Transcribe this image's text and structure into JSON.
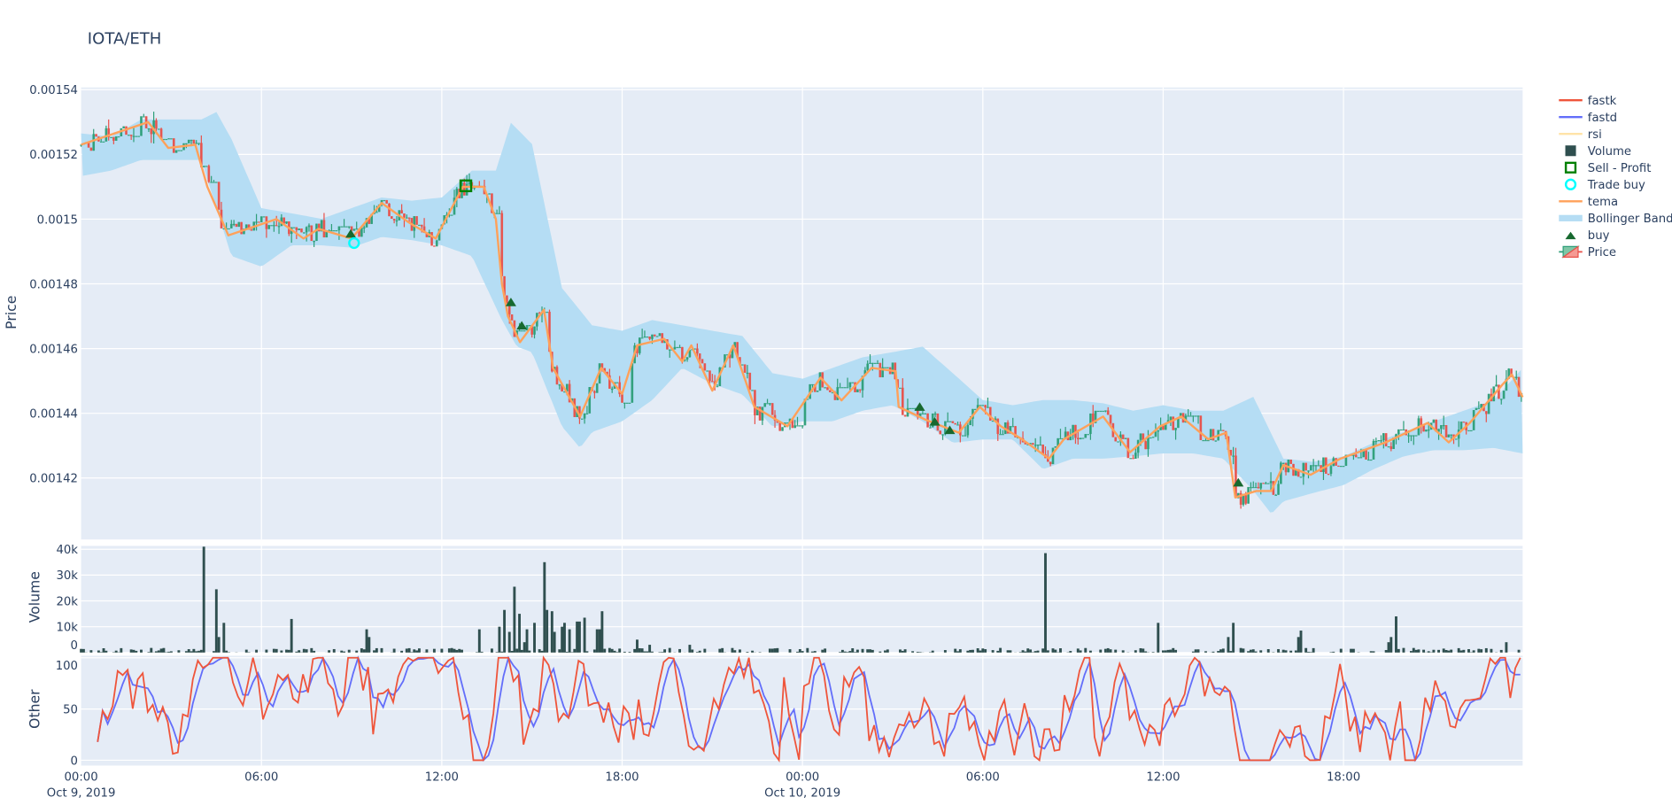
{
  "title": "IOTA/ETH",
  "colors": {
    "plot_bg": "#E5ECF6",
    "text": "#2a3f5f",
    "increasing": "#2E9E79",
    "decreasing": "#E8514A",
    "volume": "#2F4F4F",
    "fastk": "#EF553B",
    "fastd": "#636EFA",
    "rsi": "#FFE3A8",
    "tema": "#FFA15A",
    "bollinger": "#B5DDF4",
    "buy": "#17692F",
    "trade_buy": "#00FFFF",
    "sell_profit": "#008000"
  },
  "legend": {
    "position": "right",
    "items": [
      {
        "label": "fastk",
        "symbol": "line",
        "color": "#EF553B"
      },
      {
        "label": "fastd",
        "symbol": "line",
        "color": "#636EFA"
      },
      {
        "label": "rsi",
        "symbol": "line",
        "color": "#FFE3A8",
        "hidden": true
      },
      {
        "label": "Volume",
        "symbol": "square",
        "color": "#2F4F4F"
      },
      {
        "label": "Sell - Profit",
        "symbol": "square-open",
        "color": "#008000"
      },
      {
        "label": "Trade buy",
        "symbol": "circle-open",
        "color": "#00FFFF"
      },
      {
        "label": "tema",
        "symbol": "line",
        "color": "#FFA15A"
      },
      {
        "label": "Bollinger Band",
        "symbol": "band",
        "color": "#B5DDF4"
      },
      {
        "label": "buy",
        "symbol": "triangle-up",
        "color": "#17692F"
      },
      {
        "label": "Price",
        "symbol": "candlestick",
        "color": "#2E9E79"
      }
    ]
  },
  "x_axis": {
    "range_hours": [
      0,
      47.96
    ],
    "ticks": [
      {
        "hour": 0,
        "label": "00:00",
        "date": "Oct 9, 2019"
      },
      {
        "hour": 6,
        "label": "06:00"
      },
      {
        "hour": 12,
        "label": "12:00"
      },
      {
        "hour": 18,
        "label": "18:00"
      },
      {
        "hour": 24,
        "label": "00:00",
        "date": "Oct 10, 2019"
      },
      {
        "hour": 30,
        "label": "06:00"
      },
      {
        "hour": 36,
        "label": "12:00"
      },
      {
        "hour": 42,
        "label": "18:00"
      }
    ]
  },
  "chart_data": [
    {
      "type": "candlestick",
      "panel": "price",
      "ylabel": "Price",
      "ylim": [
        0.001401,
        0.0015407
      ],
      "yticks": [
        {
          "value": 0.00154,
          "label": "0.00154"
        },
        {
          "value": 0.00152,
          "label": "0.00152"
        },
        {
          "value": 0.0015,
          "label": "0.0015"
        },
        {
          "value": 0.00148,
          "label": "0.00148"
        },
        {
          "value": 0.00146,
          "label": "0.00146"
        },
        {
          "value": 0.00144,
          "label": "0.00144"
        },
        {
          "value": 0.00142,
          "label": "0.00142"
        }
      ],
      "grid": true,
      "tema": [
        [
          0,
          0.001523
        ],
        [
          2.23,
          0.00153
        ],
        [
          2.9,
          0.001522
        ],
        [
          3.8,
          0.001523
        ],
        [
          4.2,
          0.00151
        ],
        [
          4.9,
          0.001495
        ],
        [
          6.5,
          0.0015
        ],
        [
          7.4,
          0.001494
        ],
        [
          7.9,
          0.001497
        ],
        [
          9.0,
          0.001494
        ],
        [
          10.0,
          0.001505
        ],
        [
          10.9,
          0.001499
        ],
        [
          11.8,
          0.001494
        ],
        [
          12.7,
          0.00151
        ],
        [
          13.4,
          0.00151
        ],
        [
          13.8,
          0.0015
        ],
        [
          14.0,
          0.00148
        ],
        [
          14.2,
          0.00147
        ],
        [
          14.6,
          0.001462
        ],
        [
          15.4,
          0.001472
        ],
        [
          15.7,
          0.001454
        ],
        [
          16.6,
          0.001439
        ],
        [
          17.3,
          0.001454
        ],
        [
          18.0,
          0.001446
        ],
        [
          18.5,
          0.001461
        ],
        [
          19.4,
          0.001463
        ],
        [
          20.0,
          0.001456
        ],
        [
          20.3,
          0.001461
        ],
        [
          21.0,
          0.001447
        ],
        [
          21.7,
          0.001461
        ],
        [
          22.4,
          0.001442
        ],
        [
          23.5,
          0.001436
        ],
        [
          24.6,
          0.001451
        ],
        [
          25.3,
          0.001444
        ],
        [
          26.3,
          0.001454
        ],
        [
          27.1,
          0.001453
        ],
        [
          27.2,
          0.001442
        ],
        [
          28.1,
          0.001438
        ],
        [
          29.2,
          0.001434
        ],
        [
          29.9,
          0.001442
        ],
        [
          30.6,
          0.001436
        ],
        [
          31.3,
          0.001432
        ],
        [
          32.2,
          0.001426
        ],
        [
          32.7,
          0.001432
        ],
        [
          34.0,
          0.001439
        ],
        [
          34.9,
          0.001428
        ],
        [
          35.9,
          0.001436
        ],
        [
          36.6,
          0.001439
        ],
        [
          37.5,
          0.001432
        ],
        [
          38.1,
          0.001434
        ],
        [
          38.4,
          0.001414
        ],
        [
          39.1,
          0.001416
        ],
        [
          39.6,
          0.001416
        ],
        [
          40.0,
          0.001424
        ],
        [
          40.9,
          0.001421
        ],
        [
          41.9,
          0.001426
        ],
        [
          43.4,
          0.001431
        ],
        [
          44.8,
          0.001437
        ],
        [
          45.5,
          0.001431
        ],
        [
          46.2,
          0.001437
        ],
        [
          47.3,
          0.001449
        ],
        [
          47.6,
          0.001452
        ],
        [
          47.96,
          0.001445
        ]
      ],
      "bollinger_upper": [
        [
          0,
          0.0015265
        ],
        [
          1,
          0.0015255
        ],
        [
          2,
          0.0015308
        ],
        [
          3,
          0.0015308
        ],
        [
          4,
          0.0015308
        ],
        [
          4.5,
          0.0015331
        ],
        [
          5,
          0.0015248
        ],
        [
          6,
          0.0015034
        ],
        [
          7,
          0.0015018
        ],
        [
          8,
          0.0015001
        ],
        [
          9,
          0.0015034
        ],
        [
          10,
          0.0015067
        ],
        [
          11,
          0.0015057
        ],
        [
          12,
          0.0015067
        ],
        [
          13,
          0.001515
        ],
        [
          13.8,
          0.001515
        ],
        [
          14.3,
          0.0015298
        ],
        [
          15,
          0.0015232
        ],
        [
          16,
          0.0014787
        ],
        [
          17,
          0.0014672
        ],
        [
          18,
          0.0014655
        ],
        [
          19,
          0.0014688
        ],
        [
          20,
          0.0014672
        ],
        [
          21,
          0.0014655
        ],
        [
          22,
          0.0014639
        ],
        [
          23,
          0.0014524
        ],
        [
          24,
          0.0014507
        ],
        [
          25,
          0.001454
        ],
        [
          26,
          0.0014573
        ],
        [
          27,
          0.0014589
        ],
        [
          28,
          0.0014606
        ],
        [
          29,
          0.0014524
        ],
        [
          30,
          0.0014441
        ],
        [
          31,
          0.0014425
        ],
        [
          32,
          0.0014441
        ],
        [
          33,
          0.0014441
        ],
        [
          34,
          0.0014431
        ],
        [
          35,
          0.0014408
        ],
        [
          36,
          0.0014425
        ],
        [
          37,
          0.0014408
        ],
        [
          38,
          0.0014408
        ],
        [
          39,
          0.0014451
        ],
        [
          40,
          0.001426
        ],
        [
          41,
          0.001425
        ],
        [
          42,
          0.0014267
        ],
        [
          43,
          0.0014309
        ],
        [
          44,
          0.0014342
        ],
        [
          45,
          0.0014375
        ],
        [
          46,
          0.0014408
        ],
        [
          47,
          0.0014441
        ],
        [
          47.96,
          0.001454
        ]
      ],
      "bollinger_lower": [
        [
          0,
          0.0015133
        ],
        [
          1,
          0.001515
        ],
        [
          2,
          0.0015183
        ],
        [
          3,
          0.0015183
        ],
        [
          4,
          0.0015183
        ],
        [
          5,
          0.0014886
        ],
        [
          6,
          0.0014853
        ],
        [
          7,
          0.0014919
        ],
        [
          8,
          0.0014919
        ],
        [
          9,
          0.0014912
        ],
        [
          10,
          0.0014945
        ],
        [
          11,
          0.0014935
        ],
        [
          12,
          0.0014919
        ],
        [
          13,
          0.0014886
        ],
        [
          14,
          0.0014688
        ],
        [
          14.5,
          0.0014606
        ],
        [
          15,
          0.0014589
        ],
        [
          16,
          0.0014359
        ],
        [
          16.6,
          0.0014293
        ],
        [
          17,
          0.0014342
        ],
        [
          18,
          0.0014375
        ],
        [
          19,
          0.0014441
        ],
        [
          20,
          0.001454
        ],
        [
          21,
          0.0014491
        ],
        [
          22,
          0.0014458
        ],
        [
          23,
          0.0014359
        ],
        [
          24,
          0.0014375
        ],
        [
          25,
          0.0014375
        ],
        [
          26,
          0.0014408
        ],
        [
          27,
          0.0014425
        ],
        [
          28,
          0.0014375
        ],
        [
          29,
          0.0014309
        ],
        [
          30,
          0.0014319
        ],
        [
          31,
          0.0014319
        ],
        [
          32,
          0.0014227
        ],
        [
          33,
          0.001426
        ],
        [
          34,
          0.001426
        ],
        [
          35,
          0.0014267
        ],
        [
          36,
          0.0014276
        ],
        [
          37,
          0.0014276
        ],
        [
          38,
          0.001426
        ],
        [
          39,
          0.0014161
        ],
        [
          39.6,
          0.0014089
        ],
        [
          40,
          0.0014128
        ],
        [
          41,
          0.0014154
        ],
        [
          42,
          0.0014178
        ],
        [
          43,
          0.0014227
        ],
        [
          44,
          0.0014267
        ],
        [
          45,
          0.0014286
        ],
        [
          46,
          0.0014286
        ],
        [
          47,
          0.0014293
        ],
        [
          47.96,
          0.0014276
        ]
      ],
      "buy_signals": [
        [
          8.97,
          0.0014956
        ],
        [
          14.3,
          0.0014744
        ],
        [
          14.66,
          0.0014672
        ],
        [
          27.9,
          0.0014421
        ],
        [
          28.4,
          0.0014375
        ],
        [
          28.9,
          0.0014349
        ],
        [
          38.5,
          0.0014187
        ]
      ],
      "trade_buy": [
        [
          9.08,
          0.0014926
        ]
      ],
      "sell_profit": [
        [
          12.8,
          0.0015103
        ]
      ]
    },
    {
      "type": "bar",
      "panel": "volume",
      "ylabel": "Volume",
      "ylim": [
        0,
        41300
      ],
      "yticks": [
        {
          "value": 0,
          "label": "0"
        },
        {
          "value": 10000,
          "label": "10k"
        },
        {
          "value": 20000,
          "label": "20k"
        },
        {
          "value": 30000,
          "label": "30k"
        },
        {
          "value": 40000,
          "label": "40k"
        }
      ],
      "grid": true,
      "spikes": [
        [
          4.11,
          41000
        ],
        [
          4.47,
          24500
        ],
        [
          4.6,
          6000
        ],
        [
          4.72,
          11500
        ],
        [
          7.02,
          13000
        ],
        [
          9.54,
          9000
        ],
        [
          9.62,
          6000
        ],
        [
          13.24,
          9000
        ],
        [
          13.9,
          10000
        ],
        [
          14.07,
          16500
        ],
        [
          14.26,
          8000
        ],
        [
          14.43,
          25500
        ],
        [
          14.58,
          15000
        ],
        [
          14.73,
          4000
        ],
        [
          14.87,
          9000
        ],
        [
          15.12,
          11500
        ],
        [
          15.41,
          35000
        ],
        [
          15.52,
          16500
        ],
        [
          15.63,
          16000
        ],
        [
          15.77,
          8000
        ],
        [
          16.0,
          10000
        ],
        [
          16.11,
          11500
        ],
        [
          16.22,
          9000
        ],
        [
          16.47,
          12000
        ],
        [
          16.57,
          12000
        ],
        [
          16.79,
          13500
        ],
        [
          17.14,
          9000
        ],
        [
          17.25,
          9000
        ],
        [
          17.36,
          16000
        ],
        [
          18.46,
          5000
        ],
        [
          18.95,
          3000
        ],
        [
          20.23,
          3000
        ],
        [
          32.05,
          38500
        ],
        [
          35.85,
          11500
        ],
        [
          38.19,
          6000
        ],
        [
          38.33,
          11500
        ],
        [
          40.46,
          6000
        ],
        [
          40.57,
          8500
        ],
        [
          43.48,
          4000
        ],
        [
          43.59,
          6000
        ],
        [
          43.76,
          14000
        ],
        [
          47.38,
          4000
        ]
      ]
    },
    {
      "type": "line",
      "panel": "other",
      "ylabel": "Other",
      "ylim": [
        -5.2,
        102
      ],
      "yticks": [
        {
          "value": 0,
          "label": "0"
        },
        {
          "value": 50,
          "label": "50"
        },
        {
          "value": 100,
          "label": "100"
        }
      ],
      "grid": true,
      "series": [
        {
          "name": "fastk",
          "color": "#EF553B"
        },
        {
          "name": "fastd",
          "color": "#636EFA"
        }
      ]
    }
  ]
}
